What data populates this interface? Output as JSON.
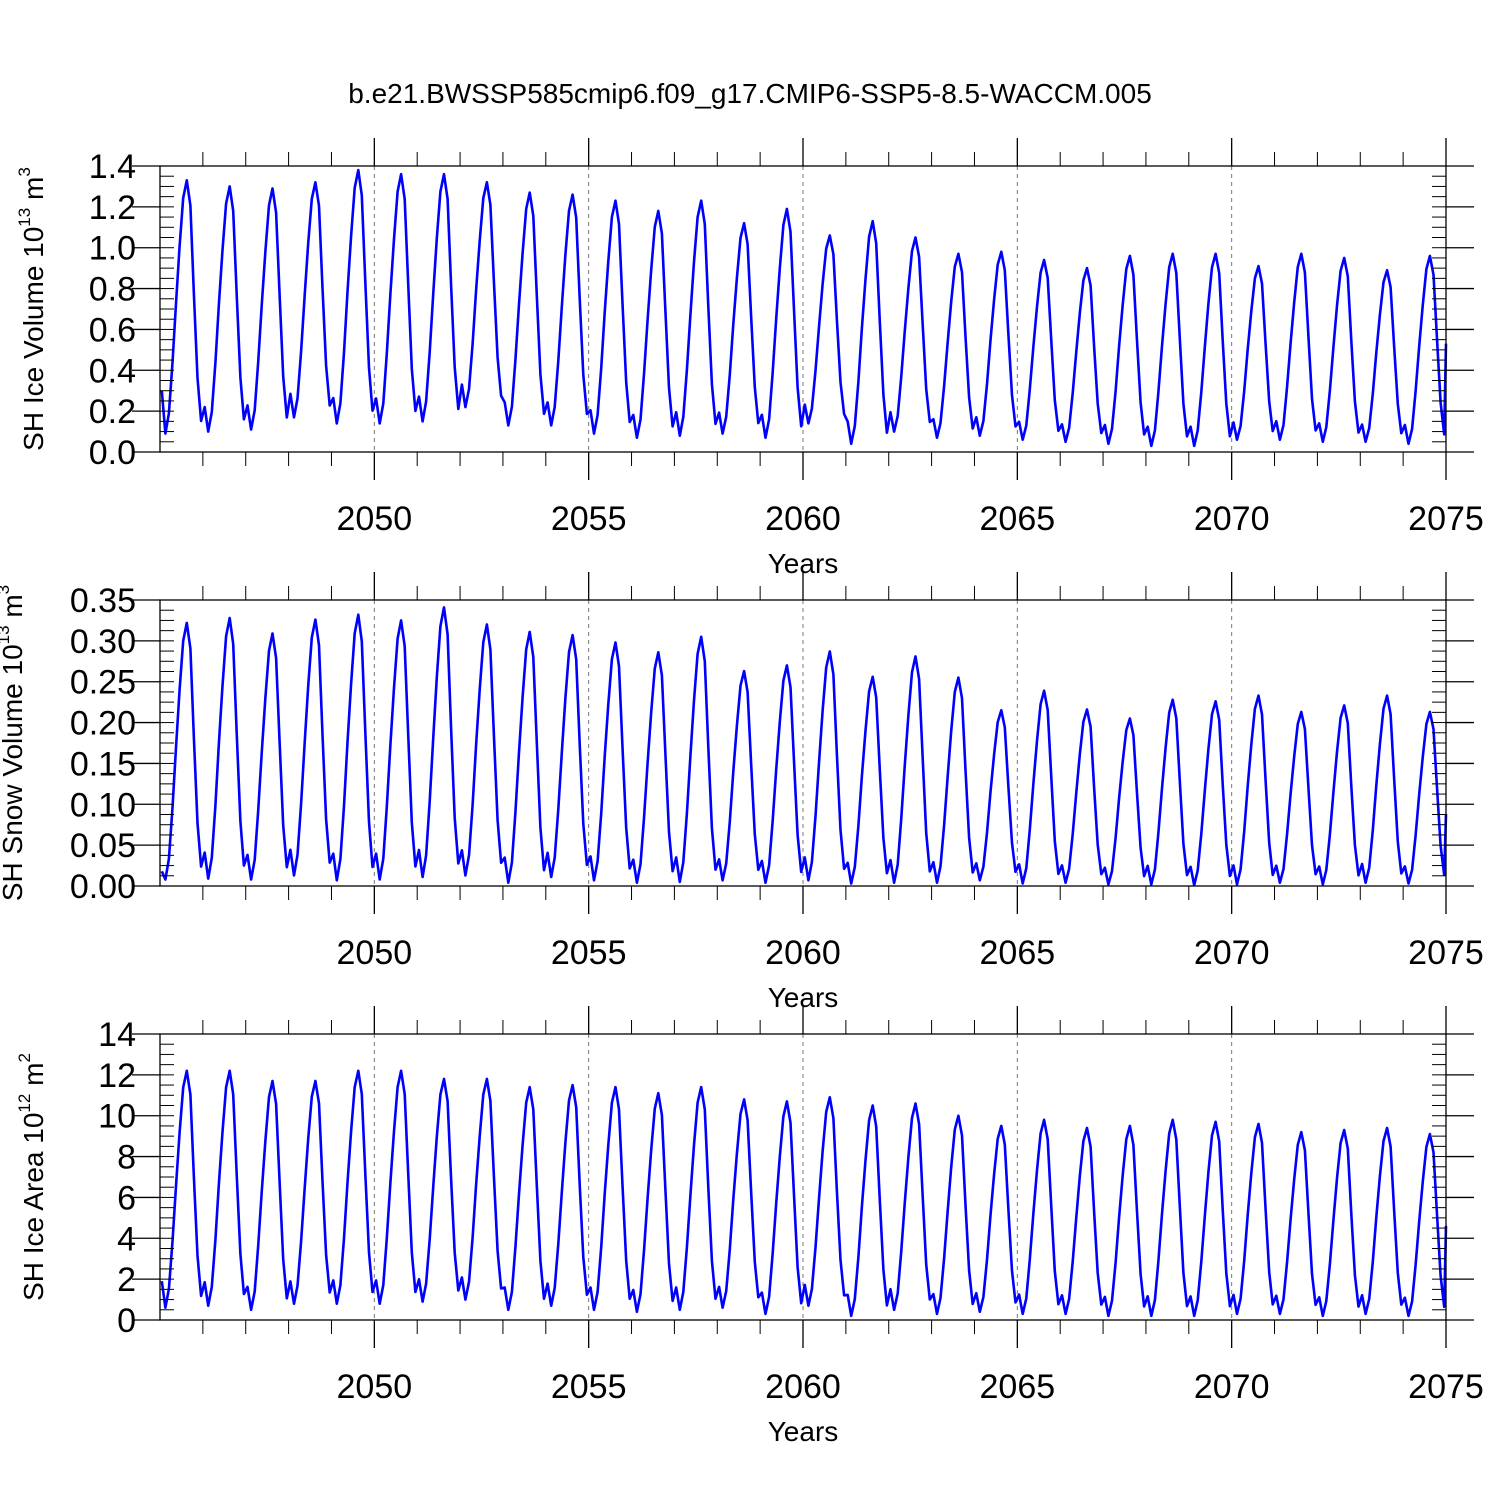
{
  "figure_title": "b.e21.BWSSP585cmip6.f09_g17.CMIP6-SSP5-8.5-WACCM.005",
  "colors": {
    "series": "#0000ff",
    "axes": "#000000",
    "refline": "#777777"
  },
  "chart_data": [
    {
      "type": "line",
      "title": "b.e21.BWSSP585cmip6.f09_g17.CMIP6-SSP5-8.5-WACCM.005",
      "xlabel": "Years",
      "ylabel": {
        "main": "SH Ice Volume 10",
        "exp": "13",
        "unit": " m",
        "unit_exp": "3"
      },
      "xlim": [
        2045,
        2075
      ],
      "ylim": [
        0,
        1.4
      ],
      "ytick_step": 0.2,
      "ytick_decimals": 1,
      "yminor_step": 0.05,
      "xticks": [
        2050,
        2055,
        2060,
        2065,
        2070,
        2075
      ],
      "xtick_labels": [
        "2050",
        "2055",
        "2060",
        "2065",
        "2070",
        "2075"
      ],
      "reference_lines_x": [
        2050,
        2055,
        2060,
        2065,
        2070
      ],
      "series": [
        {
          "name": "SH Ice Volume",
          "start_year": 2045,
          "months_per_year": 12,
          "annual_max": [
            1.33,
            1.3,
            1.29,
            1.32,
            1.38,
            1.36,
            1.36,
            1.32,
            1.27,
            1.26,
            1.23,
            1.18,
            1.23,
            1.12,
            1.19,
            1.06,
            1.13,
            1.05,
            0.97,
            0.98,
            0.94,
            0.9,
            0.96,
            0.97,
            0.97,
            0.91,
            0.97,
            0.95,
            0.89,
            0.96
          ],
          "annual_min": [
            0.09,
            0.1,
            0.11,
            0.17,
            0.14,
            0.14,
            0.15,
            0.22,
            0.13,
            0.13,
            0.09,
            0.07,
            0.08,
            0.09,
            0.07,
            0.14,
            0.04,
            0.1,
            0.07,
            0.08,
            0.06,
            0.05,
            0.04,
            0.03,
            0.03,
            0.06,
            0.06,
            0.05,
            0.05,
            0.04
          ],
          "start_value": 0.3,
          "end_value": 0.53
        }
      ]
    },
    {
      "type": "line",
      "xlabel": "Years",
      "ylabel": {
        "main": "SH Snow Volume 10",
        "exp": "13",
        "unit": " m",
        "unit_exp": "3"
      },
      "xlim": [
        2045,
        2075
      ],
      "ylim": [
        0,
        0.35
      ],
      "ytick_step": 0.05,
      "ytick_decimals": 2,
      "yminor_step": 0.0125,
      "xticks": [
        2050,
        2055,
        2060,
        2065,
        2070,
        2075
      ],
      "xtick_labels": [
        "2050",
        "2055",
        "2060",
        "2065",
        "2070",
        "2075"
      ],
      "reference_lines_x": [
        2050,
        2055,
        2060,
        2065,
        2070
      ],
      "series": [
        {
          "name": "SH Snow Volume",
          "start_year": 2045,
          "months_per_year": 12,
          "annual_max": [
            0.322,
            0.328,
            0.309,
            0.326,
            0.332,
            0.325,
            0.341,
            0.32,
            0.311,
            0.307,
            0.298,
            0.286,
            0.305,
            0.263,
            0.27,
            0.287,
            0.256,
            0.281,
            0.255,
            0.215,
            0.239,
            0.216,
            0.205,
            0.228,
            0.226,
            0.233,
            0.213,
            0.221,
            0.233,
            0.213
          ],
          "annual_min": [
            0.008,
            0.009,
            0.008,
            0.013,
            0.007,
            0.008,
            0.011,
            0.013,
            0.004,
            0.011,
            0.007,
            0.004,
            0.005,
            0.007,
            0.004,
            0.007,
            0.003,
            0.004,
            0.004,
            0.007,
            0.003,
            0.004,
            0.002,
            0.002,
            0.001,
            0.002,
            0.004,
            0.002,
            0.004,
            0.003
          ],
          "start_value": 0.018,
          "end_value": 0.088
        }
      ]
    },
    {
      "type": "line",
      "xlabel": "Years",
      "ylabel": {
        "main": "SH Ice Area 10",
        "exp": "12",
        "unit": " m",
        "unit_exp": "2"
      },
      "xlim": [
        2045,
        2075
      ],
      "ylim": [
        0,
        14
      ],
      "ytick_step": 2,
      "ytick_decimals": 0,
      "yminor_step": 0.5,
      "xticks": [
        2050,
        2055,
        2060,
        2065,
        2070,
        2075
      ],
      "xtick_labels": [
        "2050",
        "2055",
        "2060",
        "2065",
        "2070",
        "2075"
      ],
      "reference_lines_x": [
        2050,
        2055,
        2060,
        2065,
        2070
      ],
      "series": [
        {
          "name": "SH Ice Area",
          "start_year": 2045,
          "months_per_year": 12,
          "annual_max": [
            12.2,
            12.2,
            11.7,
            11.7,
            12.2,
            12.2,
            11.8,
            11.8,
            11.4,
            11.5,
            11.4,
            11.1,
            11.4,
            10.8,
            10.7,
            10.9,
            10.5,
            10.6,
            10.0,
            9.5,
            9.8,
            9.4,
            9.5,
            9.8,
            9.7,
            9.6,
            9.2,
            9.3,
            9.4,
            9.1
          ],
          "annual_min": [
            0.6,
            0.7,
            0.5,
            0.8,
            0.8,
            0.8,
            0.9,
            1.0,
            0.5,
            0.7,
            0.5,
            0.4,
            0.5,
            0.6,
            0.3,
            0.7,
            0.2,
            0.5,
            0.3,
            0.4,
            0.3,
            0.3,
            0.2,
            0.2,
            0.2,
            0.3,
            0.3,
            0.2,
            0.3,
            0.2
          ],
          "start_value": 1.9,
          "end_value": 4.6
        }
      ]
    }
  ]
}
